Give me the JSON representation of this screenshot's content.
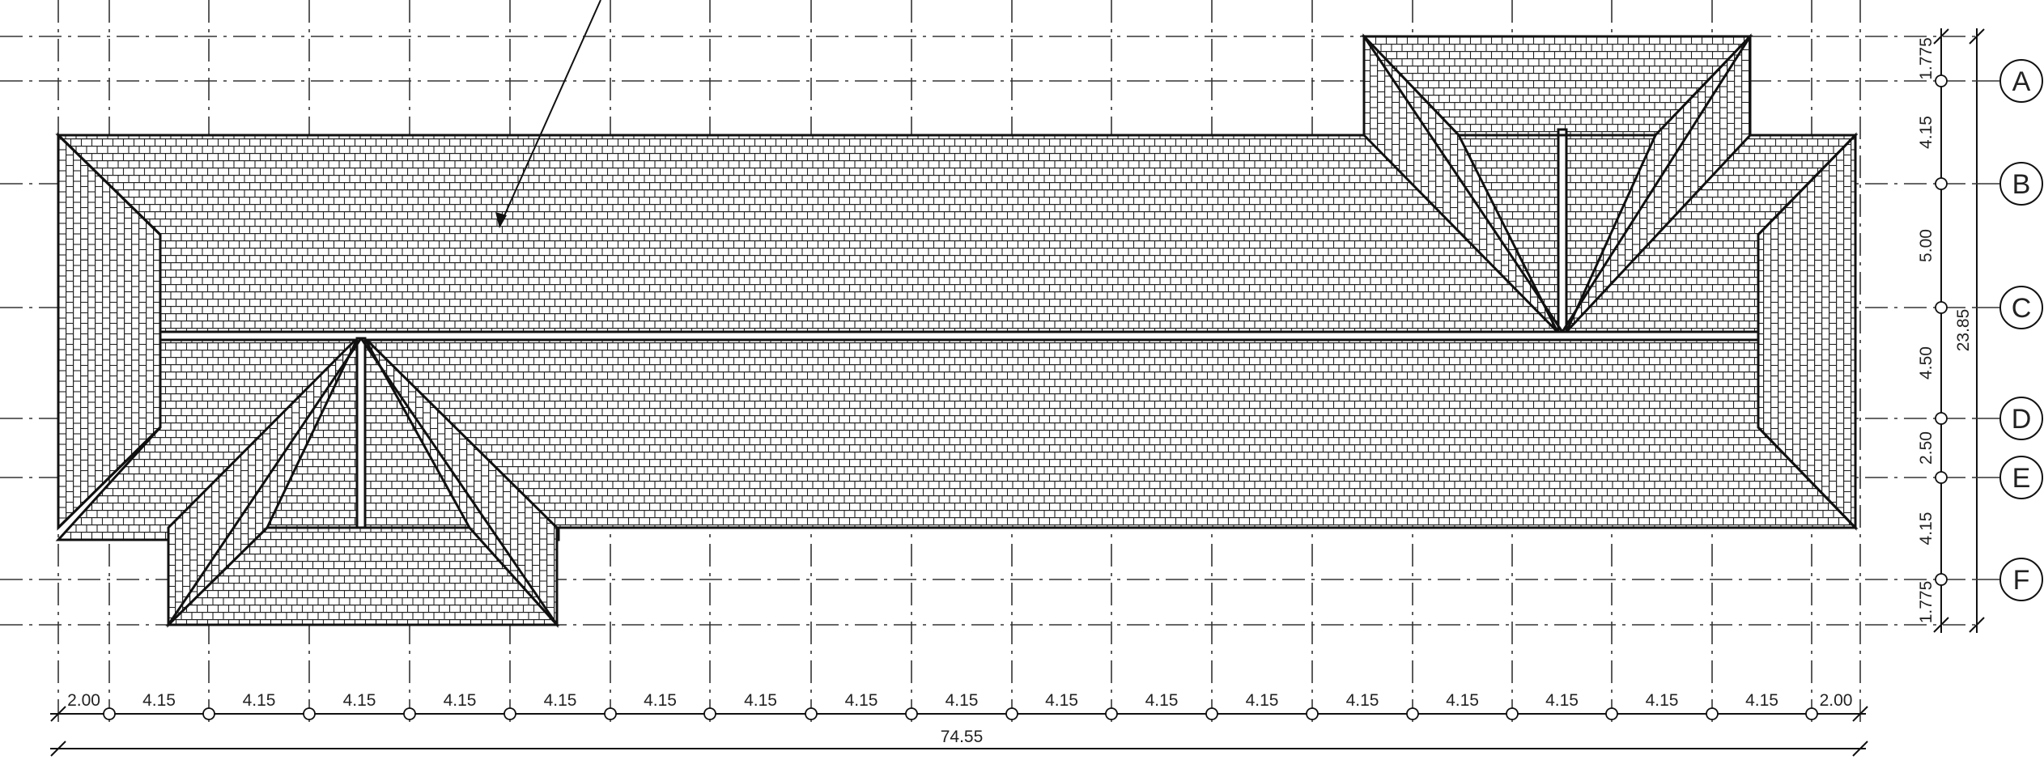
{
  "drawing": {
    "grid_labels": [
      "A",
      "B",
      "C",
      "D",
      "E",
      "F"
    ],
    "bottom_dims": [
      "2.00",
      "4.15",
      "4.15",
      "4.15",
      "4.15",
      "4.15",
      "4.15",
      "4.15",
      "4.15",
      "4.15",
      "4.15",
      "4.15",
      "4.15",
      "4.15",
      "4.15",
      "4.15",
      "4.15",
      "4.15",
      "2.00"
    ],
    "total_width": "74.55",
    "right_dims": [
      "1.775",
      "4.15",
      "5.00",
      "4.50",
      "2.50",
      "4.15",
      "1.775"
    ],
    "total_height": "23.85"
  }
}
